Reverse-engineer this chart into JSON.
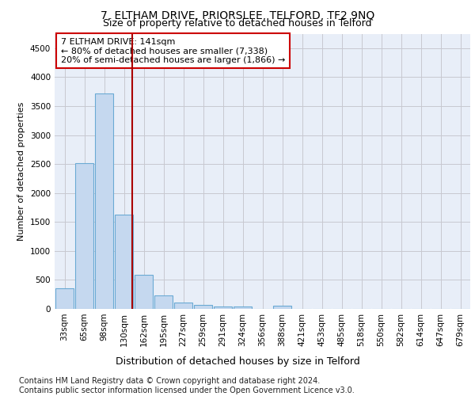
{
  "title": "7, ELTHAM DRIVE, PRIORSLEE, TELFORD, TF2 9NQ",
  "subtitle": "Size of property relative to detached houses in Telford",
  "xlabel": "Distribution of detached houses by size in Telford",
  "ylabel": "Number of detached properties",
  "categories": [
    "33sqm",
    "65sqm",
    "98sqm",
    "130sqm",
    "162sqm",
    "195sqm",
    "227sqm",
    "259sqm",
    "291sqm",
    "324sqm",
    "356sqm",
    "388sqm",
    "421sqm",
    "453sqm",
    "485sqm",
    "518sqm",
    "550sqm",
    "582sqm",
    "614sqm",
    "647sqm",
    "679sqm"
  ],
  "values": [
    360,
    2510,
    3720,
    1630,
    590,
    235,
    110,
    70,
    45,
    40,
    0,
    55,
    0,
    0,
    0,
    0,
    0,
    0,
    0,
    0,
    0
  ],
  "bar_color": "#c5d8ef",
  "bar_edge_color": "#6aaad4",
  "vline_color": "#aa0000",
  "vline_x": 3.42,
  "annotation_text": "7 ELTHAM DRIVE: 141sqm\n← 80% of detached houses are smaller (7,338)\n20% of semi-detached houses are larger (1,866) →",
  "annotation_box_facecolor": "#ffffff",
  "annotation_box_edgecolor": "#cc0000",
  "ylim": [
    0,
    4750
  ],
  "yticks": [
    0,
    500,
    1000,
    1500,
    2000,
    2500,
    3000,
    3500,
    4000,
    4500
  ],
  "title_fontsize": 10,
  "subtitle_fontsize": 9,
  "xlabel_fontsize": 9,
  "ylabel_fontsize": 8,
  "tick_fontsize": 7.5,
  "annot_fontsize": 8,
  "footnote1": "Contains HM Land Registry data © Crown copyright and database right 2024.",
  "footnote2": "Contains public sector information licensed under the Open Government Licence v3.0.",
  "bg_color": "#e8eef8",
  "grid_color": "#c8c8d0",
  "footnote_fontsize": 7
}
